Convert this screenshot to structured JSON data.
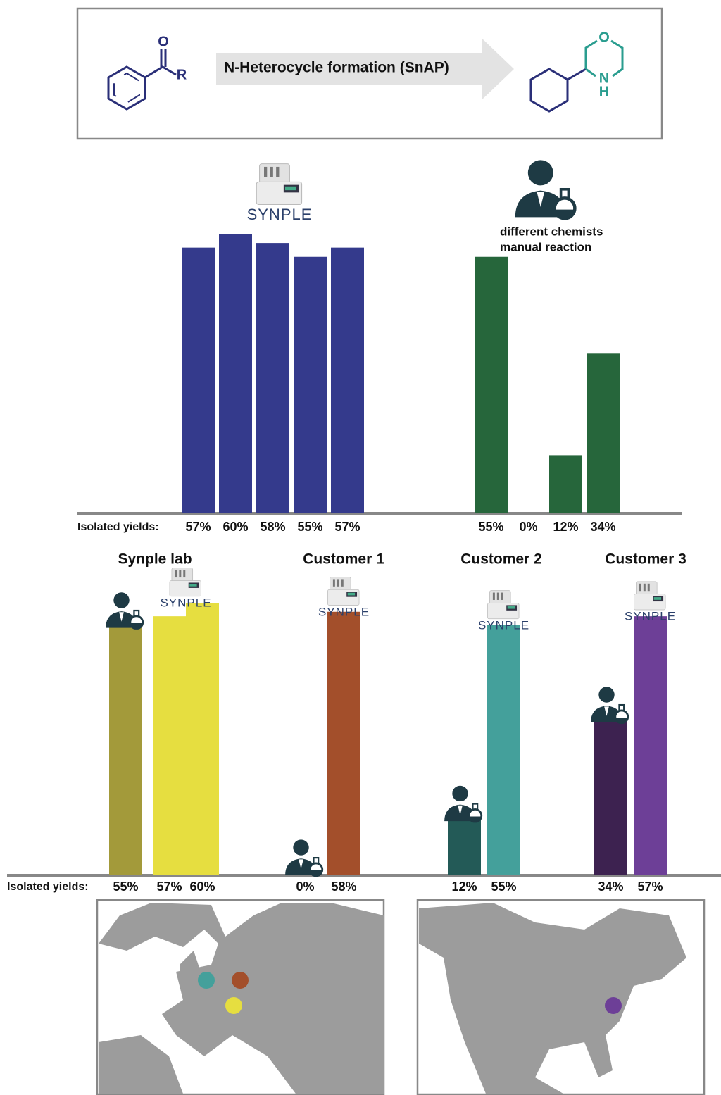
{
  "scheme": {
    "reactant_atoms": [
      "O",
      "R"
    ],
    "arrow_label": "N-Heterocycle formation (SnAP)",
    "product_atoms": [
      "O",
      "N",
      "H"
    ]
  },
  "chart_data": [
    {
      "type": "bar",
      "logo": "SYNPLE",
      "annotation": [
        "different chemists",
        "manual reaction"
      ],
      "row_label": "Isolated yields:",
      "ylim": [
        0,
        60
      ],
      "series": [
        {
          "color": "#343a8c",
          "values": [
            57,
            60,
            58,
            55,
            57
          ],
          "value_labels": [
            "57%",
            "60%",
            "58%",
            "55%",
            "57%"
          ]
        },
        {
          "color": "#26663b",
          "values": [
            55,
            0,
            12,
            34
          ],
          "value_labels": [
            "55%",
            "0%",
            "12%",
            "34%"
          ]
        }
      ]
    },
    {
      "type": "bar",
      "row_label": "Isolated yields:",
      "ylim": [
        0,
        60
      ],
      "groups": [
        {
          "name": "Synple lab",
          "values": [
            55,
            57,
            60
          ],
          "value_labels": [
            "55%",
            "57%",
            "60%"
          ],
          "colors": [
            "#a39a3a",
            "#e6de40",
            "#e6de40"
          ]
        },
        {
          "name": "Customer 1",
          "values": [
            0,
            58
          ],
          "value_labels": [
            "0%",
            "58%"
          ],
          "colors": [
            "#a34f2b",
            "#a34f2b"
          ]
        },
        {
          "name": "Customer 2",
          "values": [
            12,
            55
          ],
          "value_labels": [
            "12%",
            "55%"
          ],
          "colors": [
            "#235a57",
            "#44a09b"
          ]
        },
        {
          "name": "Customer 3",
          "values": [
            34,
            57
          ],
          "value_labels": [
            "34%",
            "57%"
          ],
          "colors": [
            "#3d2250",
            "#6d3f97"
          ]
        }
      ]
    }
  ]
}
